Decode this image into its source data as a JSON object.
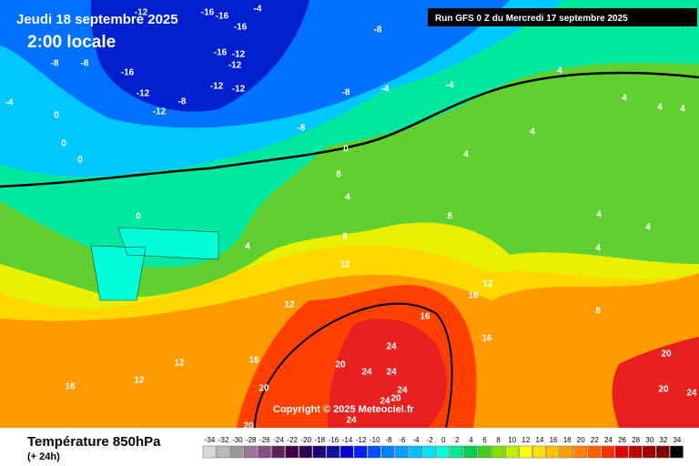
{
  "header": {
    "date": "Jeudi 18 septembre 2025",
    "time": "2:00 locale",
    "run": "Run GFS 0 Z du Mercredi 17 septembre 2025"
  },
  "map": {
    "copyright": "Copyright © 2025 Meteociel.fr",
    "contour_labels": [
      -12,
      -16,
      -16,
      -4,
      -16,
      -8,
      -8,
      -8,
      -16,
      -16,
      -12,
      -12,
      -12,
      -12,
      -12,
      -8,
      -12,
      -8,
      -4,
      -4,
      -4,
      0,
      0,
      0,
      -8,
      0,
      4,
      4,
      4,
      4,
      4,
      4,
      8,
      4,
      0,
      4,
      8,
      8,
      4,
      4,
      4,
      12,
      12,
      16,
      12,
      16,
      8,
      16,
      24,
      20,
      24,
      24,
      16,
      12,
      12,
      16,
      20,
      24,
      24,
      20,
      24,
      20,
      20,
      20,
      24
    ]
  },
  "legend": {
    "title": "Température 850hPa",
    "subtitle": "(+ 24h)",
    "ticks": [
      -34,
      -32,
      -30,
      -28,
      -26,
      -24,
      -22,
      -20,
      -18,
      -16,
      -14,
      -12,
      -10,
      -8,
      -6,
      -4,
      -2,
      0,
      2,
      4,
      6,
      8,
      10,
      12,
      14,
      16,
      18,
      20,
      22,
      24,
      26,
      28,
      30,
      32,
      34
    ],
    "colors": [
      "#d8d8d8",
      "#b8b8b8",
      "#989898",
      "#a070a0",
      "#805080",
      "#602060",
      "#400040",
      "#300050",
      "#200070",
      "#1010a0",
      "#0000d0",
      "#0020ff",
      "#0050ff",
      "#0080ff",
      "#00a0ff",
      "#00c0ff",
      "#00e0ff",
      "#00ffd8",
      "#00e890",
      "#00d050",
      "#40d020",
      "#80e000",
      "#c0f000",
      "#ffff00",
      "#ffe000",
      "#ffc000",
      "#ffa000",
      "#ff8000",
      "#ff6000",
      "#ff3000",
      "#e00000",
      "#c00000",
      "#a00000",
      "#800000",
      "#000000"
    ]
  }
}
